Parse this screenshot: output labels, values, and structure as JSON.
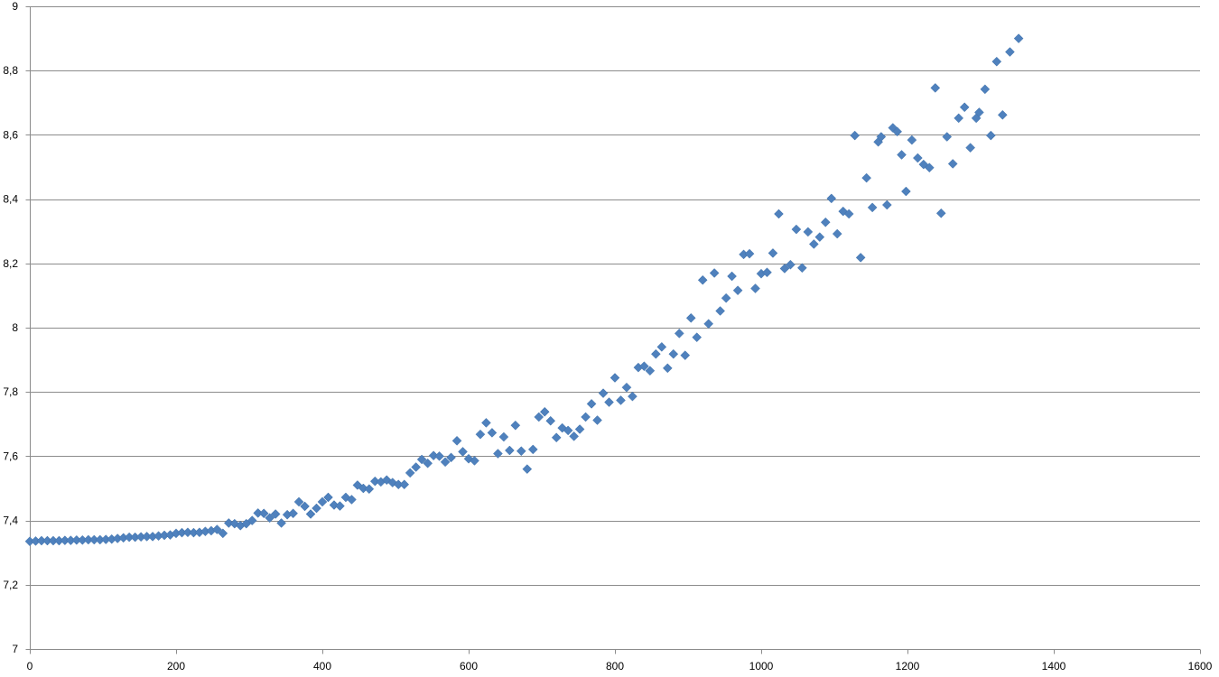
{
  "chart_data": {
    "type": "scatter",
    "title": "",
    "xlabel": "",
    "ylabel": "",
    "xlim": [
      0,
      1600
    ],
    "ylim": [
      7,
      9
    ],
    "x_ticks": [
      0,
      200,
      400,
      600,
      800,
      1000,
      1200,
      1400,
      1600
    ],
    "y_ticks": [
      7,
      7.2,
      7.4,
      7.6,
      7.8,
      8,
      8.2,
      8.4,
      8.6,
      8.8,
      9
    ],
    "x_tick_labels": [
      "0",
      "200",
      "400",
      "600",
      "800",
      "1000",
      "1200",
      "1400",
      "1600"
    ],
    "y_tick_labels": [
      "7",
      "7,2",
      "7,4",
      "7,6",
      "7,8",
      "8",
      "8,2",
      "8,4",
      "8,6",
      "8,8",
      "9"
    ],
    "grid": "horizontal",
    "legend": "none",
    "marker_color": "#4F81BD",
    "marker_shape": "diamond",
    "series": [
      {
        "points": [
          [
            0,
            7.335
          ],
          [
            8,
            7.336
          ],
          [
            16,
            7.337
          ],
          [
            24,
            7.337
          ],
          [
            32,
            7.337
          ],
          [
            40,
            7.337
          ],
          [
            48,
            7.338
          ],
          [
            56,
            7.338
          ],
          [
            64,
            7.339
          ],
          [
            72,
            7.339
          ],
          [
            80,
            7.34
          ],
          [
            88,
            7.34
          ],
          [
            96,
            7.34
          ],
          [
            104,
            7.341
          ],
          [
            112,
            7.342
          ],
          [
            120,
            7.344
          ],
          [
            128,
            7.346
          ],
          [
            136,
            7.348
          ],
          [
            144,
            7.348
          ],
          [
            152,
            7.349
          ],
          [
            160,
            7.35
          ],
          [
            168,
            7.35
          ],
          [
            176,
            7.352
          ],
          [
            184,
            7.354
          ],
          [
            192,
            7.355
          ],
          [
            200,
            7.36
          ],
          [
            208,
            7.362
          ],
          [
            216,
            7.363
          ],
          [
            224,
            7.362
          ],
          [
            232,
            7.363
          ],
          [
            240,
            7.366
          ],
          [
            248,
            7.368
          ],
          [
            256,
            7.372
          ],
          [
            264,
            7.36
          ],
          [
            272,
            7.392
          ],
          [
            280,
            7.39
          ],
          [
            288,
            7.384
          ],
          [
            296,
            7.39
          ],
          [
            304,
            7.4
          ],
          [
            312,
            7.423
          ],
          [
            320,
            7.422
          ],
          [
            328,
            7.408
          ],
          [
            336,
            7.42
          ],
          [
            344,
            7.392
          ],
          [
            352,
            7.418
          ],
          [
            360,
            7.422
          ],
          [
            368,
            7.458
          ],
          [
            376,
            7.444
          ],
          [
            384,
            7.42
          ],
          [
            392,
            7.438
          ],
          [
            400,
            7.458
          ],
          [
            408,
            7.472
          ],
          [
            416,
            7.448
          ],
          [
            424,
            7.445
          ],
          [
            432,
            7.472
          ],
          [
            440,
            7.465
          ],
          [
            448,
            7.51
          ],
          [
            456,
            7.5
          ],
          [
            464,
            7.498
          ],
          [
            472,
            7.522
          ],
          [
            480,
            7.52
          ],
          [
            488,
            7.526
          ],
          [
            496,
            7.518
          ],
          [
            504,
            7.512
          ],
          [
            512,
            7.512
          ],
          [
            520,
            7.548
          ],
          [
            528,
            7.566
          ],
          [
            536,
            7.59
          ],
          [
            544,
            7.578
          ],
          [
            552,
            7.602
          ],
          [
            560,
            7.6
          ],
          [
            568,
            7.582
          ],
          [
            576,
            7.596
          ],
          [
            584,
            7.648
          ],
          [
            592,
            7.614
          ],
          [
            600,
            7.592
          ],
          [
            608,
            7.586
          ],
          [
            616,
            7.668
          ],
          [
            624,
            7.704
          ],
          [
            632,
            7.673
          ],
          [
            640,
            7.608
          ],
          [
            648,
            7.66
          ],
          [
            656,
            7.618
          ],
          [
            664,
            7.696
          ],
          [
            672,
            7.616
          ],
          [
            680,
            7.56
          ],
          [
            688,
            7.621
          ],
          [
            696,
            7.722
          ],
          [
            704,
            7.738
          ],
          [
            712,
            7.71
          ],
          [
            720,
            7.658
          ],
          [
            728,
            7.688
          ],
          [
            736,
            7.68
          ],
          [
            744,
            7.662
          ],
          [
            752,
            7.684
          ],
          [
            760,
            7.722
          ],
          [
            768,
            7.763
          ],
          [
            776,
            7.712
          ],
          [
            784,
            7.796
          ],
          [
            792,
            7.768
          ],
          [
            800,
            7.844
          ],
          [
            808,
            7.774
          ],
          [
            816,
            7.814
          ],
          [
            824,
            7.786
          ],
          [
            832,
            7.876
          ],
          [
            840,
            7.88
          ],
          [
            848,
            7.866
          ],
          [
            856,
            7.918
          ],
          [
            864,
            7.94
          ],
          [
            872,
            7.874
          ],
          [
            880,
            7.918
          ],
          [
            888,
            7.982
          ],
          [
            896,
            7.914
          ],
          [
            904,
            8.03
          ],
          [
            912,
            7.97
          ],
          [
            920,
            8.148
          ],
          [
            928,
            8.012
          ],
          [
            936,
            8.17
          ],
          [
            944,
            8.052
          ],
          [
            952,
            8.092
          ],
          [
            960,
            8.16
          ],
          [
            968,
            8.116
          ],
          [
            976,
            8.228
          ],
          [
            984,
            8.23
          ],
          [
            992,
            8.122
          ],
          [
            1000,
            8.168
          ],
          [
            1008,
            8.172
          ],
          [
            1016,
            8.232
          ],
          [
            1024,
            8.354
          ],
          [
            1032,
            8.184
          ],
          [
            1040,
            8.196
          ],
          [
            1048,
            8.306
          ],
          [
            1056,
            8.186
          ],
          [
            1064,
            8.298
          ],
          [
            1072,
            8.26
          ],
          [
            1080,
            8.282
          ],
          [
            1088,
            8.328
          ],
          [
            1096,
            8.402
          ],
          [
            1104,
            8.292
          ],
          [
            1112,
            8.362
          ],
          [
            1120,
            8.354
          ],
          [
            1128,
            8.598
          ],
          [
            1136,
            8.218
          ],
          [
            1144,
            8.466
          ],
          [
            1152,
            8.374
          ],
          [
            1160,
            8.578
          ],
          [
            1164,
            8.594
          ],
          [
            1172,
            8.382
          ],
          [
            1180,
            8.622
          ],
          [
            1186,
            8.61
          ],
          [
            1192,
            8.538
          ],
          [
            1198,
            8.424
          ],
          [
            1206,
            8.584
          ],
          [
            1214,
            8.528
          ],
          [
            1222,
            8.508
          ],
          [
            1230,
            8.498
          ],
          [
            1238,
            8.746
          ],
          [
            1246,
            8.356
          ],
          [
            1254,
            8.594
          ],
          [
            1262,
            8.51
          ],
          [
            1270,
            8.652
          ],
          [
            1278,
            8.686
          ],
          [
            1286,
            8.56
          ],
          [
            1294,
            8.652
          ],
          [
            1298,
            8.67
          ],
          [
            1306,
            8.742
          ],
          [
            1314,
            8.598
          ],
          [
            1322,
            8.828
          ],
          [
            1330,
            8.662
          ],
          [
            1340,
            8.858
          ],
          [
            1352,
            8.9
          ]
        ]
      }
    ]
  }
}
